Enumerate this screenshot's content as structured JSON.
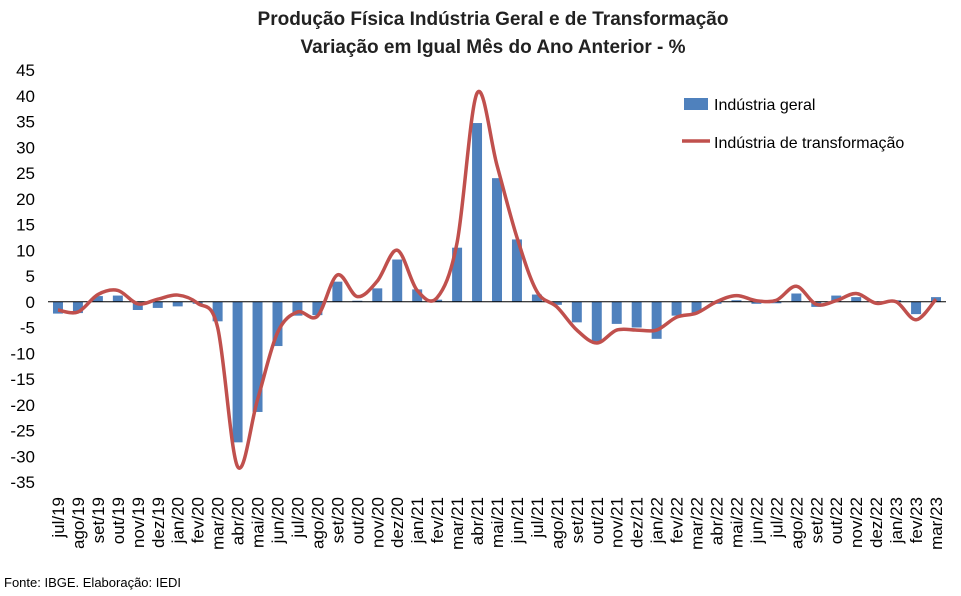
{
  "chart_data": {
    "type": "bar",
    "title": "Produção Física Indústria Geral e de Transformação",
    "subtitle": "Variação em Igual Mês do Ano Anterior - %",
    "ylim": [
      -35,
      45
    ],
    "yticks": [
      45,
      40,
      35,
      30,
      25,
      20,
      15,
      10,
      5,
      0,
      -5,
      -10,
      -15,
      -20,
      -25,
      -30,
      -35
    ],
    "grid": false,
    "legend_position": "top-right",
    "categories": [
      "jul/19",
      "ago/19",
      "set/19",
      "out/19",
      "nov/19",
      "dez/19",
      "jan/20",
      "fev/20",
      "mar/20",
      "abr/20",
      "mai/20",
      "jun/20",
      "jul/20",
      "ago/20",
      "set/20",
      "out/20",
      "nov/20",
      "dez/20",
      "jan/21",
      "fev/21",
      "mar/21",
      "abr/21",
      "mai/21",
      "jun/21",
      "jul/21",
      "ago/21",
      "set/21",
      "out/21",
      "nov/21",
      "dez/21",
      "jan/22",
      "fev/22",
      "mar/22",
      "abr/22",
      "mai/22",
      "jun/22",
      "jul/22",
      "ago/22",
      "set/22",
      "out/22",
      "nov/22",
      "dez/22",
      "jan/23",
      "fev/23",
      "mar/23"
    ],
    "series": [
      {
        "name": "Indústria geral",
        "kind": "bar",
        "color": "#4f81bd",
        "values": [
          -2.3,
          -2.2,
          1.1,
          1.2,
          -1.6,
          -1.2,
          -0.9,
          -0.4,
          -3.8,
          -27.3,
          -21.4,
          -8.6,
          -2.7,
          -2.6,
          3.9,
          0.2,
          2.6,
          8.2,
          2.4,
          0.4,
          10.5,
          34.7,
          24.0,
          12.1,
          1.4,
          -0.6,
          -4.0,
          -7.7,
          -4.3,
          -5.0,
          -7.2,
          -2.7,
          -2.1,
          -0.4,
          0.3,
          -0.4,
          -0.3,
          1.6,
          -1.0,
          1.2,
          0.9,
          0.0,
          0.3,
          -2.4,
          0.9
        ]
      },
      {
        "name": "Indústria de transformação",
        "kind": "line",
        "color": "#c0504d",
        "values": [
          -1.6,
          -2.0,
          1.4,
          2.2,
          -0.4,
          0.5,
          1.3,
          -0.3,
          -5.0,
          -32.0,
          -19.0,
          -6.0,
          -2.0,
          -2.8,
          5.2,
          1.0,
          4.0,
          10.0,
          2.2,
          0.8,
          11.5,
          40.5,
          26.5,
          12.5,
          2.0,
          -1.0,
          -5.5,
          -8.0,
          -5.5,
          -5.5,
          -5.5,
          -3.0,
          -2.2,
          0.0,
          1.2,
          0.2,
          0.3,
          3.0,
          -0.5,
          0.2,
          1.6,
          -0.3,
          0.0,
          -3.5,
          0.5
        ]
      }
    ]
  },
  "source": "Fonte: IBGE. Elaboração: IEDI"
}
